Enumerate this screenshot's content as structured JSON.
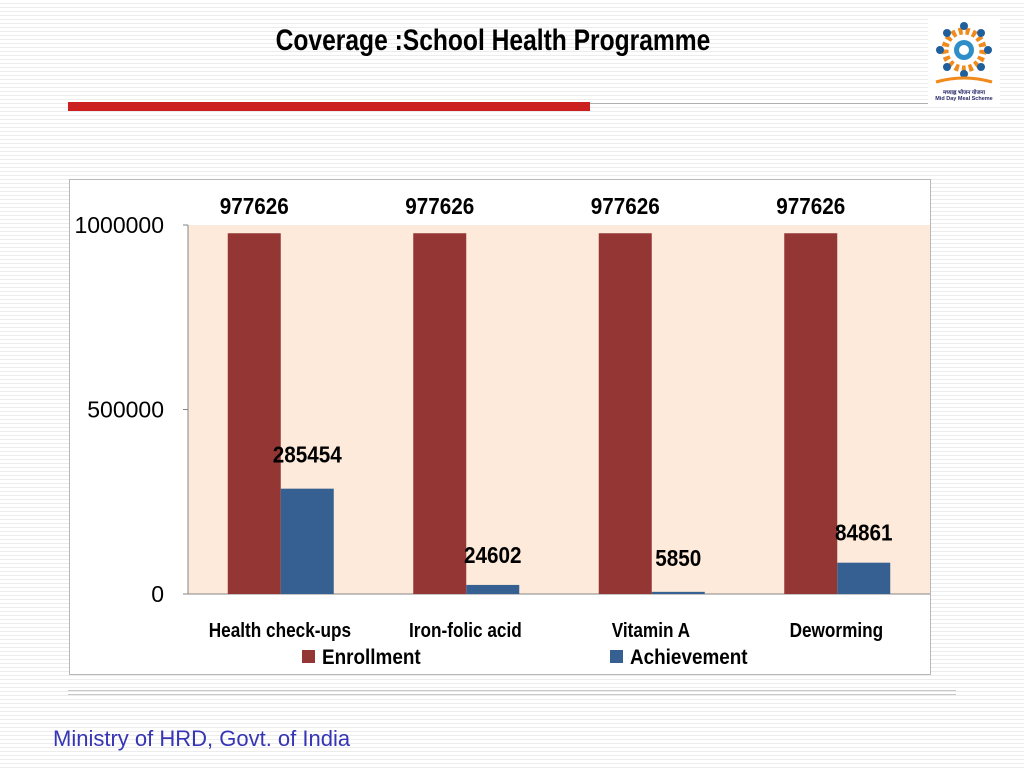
{
  "slide": {
    "title": "Coverage :School Health Programme",
    "footer": "Ministry of HRD, Govt. of India",
    "logo": {
      "icon": "mid-day-meal-logo-icon",
      "text_hindi": "मध्याह्न भोजन योजना",
      "text_english": "Mid Day Meal Scheme"
    },
    "colors": {
      "accent_bar": "#cc1f1f",
      "footer_text": "#3535b5"
    }
  },
  "chart_data": {
    "type": "bar",
    "categories": [
      "Health check-ups",
      "Iron-folic acid",
      "Vitamin A",
      "Deworming"
    ],
    "series": [
      {
        "name": "Enrollment",
        "values": [
          977626,
          977626,
          977626,
          977626
        ],
        "color": "#943634"
      },
      {
        "name": "Achievement",
        "values": [
          285454,
          24602,
          5850,
          84861
        ],
        "color": "#376092"
      }
    ],
    "data_labels": {
      "Enrollment": [
        "977626",
        "977626",
        "977626",
        "977626"
      ],
      "Achievement": [
        "285454",
        "24602",
        "5850",
        "84861"
      ]
    },
    "y_ticks": [
      "0",
      "500000",
      "1000000"
    ],
    "ylim": [
      0,
      1000000
    ],
    "grid": false,
    "legend_position": "bottom",
    "plot_background": "#fdeada"
  }
}
